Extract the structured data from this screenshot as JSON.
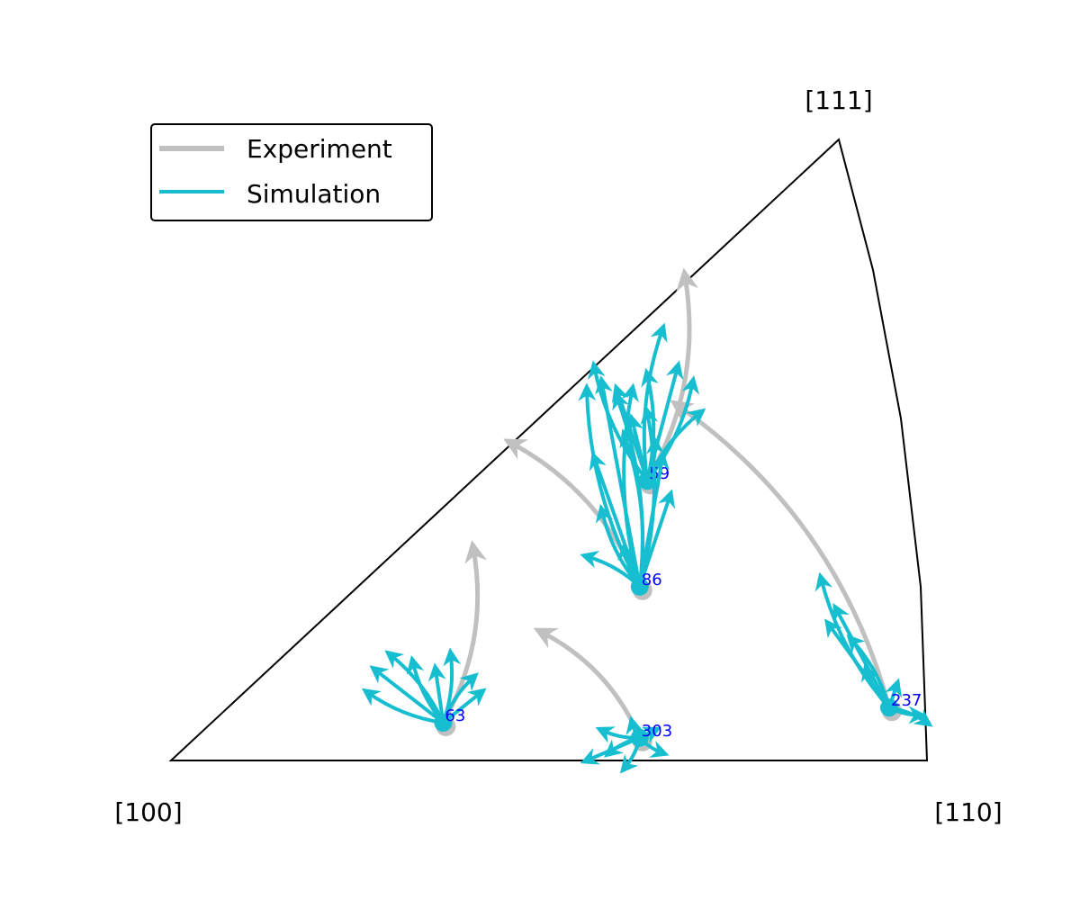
{
  "chart_data": {
    "type": "inverse-pole-figure",
    "title": "",
    "corners": [
      "[100]",
      "[110]",
      "[111]"
    ],
    "legend": {
      "placement": "top-left",
      "entries": [
        {
          "label": "Experiment",
          "color": "#c0c0c0"
        },
        {
          "label": "Simulation",
          "color": "#17becf"
        }
      ]
    },
    "label_color": "#0000ff",
    "grains": [
      {
        "id": "59",
        "start": [
          0.63,
          0.37
        ],
        "experiment_end": [
          0.68,
          0.64
        ],
        "simulation_ends": [
          [
            0.56,
            0.52
          ],
          [
            0.59,
            0.49
          ],
          [
            0.63,
            0.51
          ],
          [
            0.65,
            0.57
          ],
          [
            0.67,
            0.52
          ],
          [
            0.69,
            0.5
          ],
          [
            0.7,
            0.46
          ],
          [
            0.61,
            0.45
          ],
          [
            0.64,
            0.42
          ]
        ]
      },
      {
        "id": "86",
        "start": [
          0.62,
          0.23
        ],
        "experiment_end": [
          0.45,
          0.42
        ],
        "simulation_ends": [
          [
            0.55,
            0.49
          ],
          [
            0.57,
            0.5
          ],
          [
            0.59,
            0.48
          ],
          [
            0.61,
            0.49
          ],
          [
            0.56,
            0.4
          ],
          [
            0.6,
            0.43
          ],
          [
            0.57,
            0.33
          ],
          [
            0.65,
            0.4
          ],
          [
            0.55,
            0.27
          ],
          [
            0.6,
            0.28
          ],
          [
            0.66,
            0.35
          ],
          [
            0.63,
            0.46
          ]
        ]
      },
      {
        "id": "63",
        "start": [
          0.36,
          0.05
        ],
        "experiment_end": [
          0.4,
          0.28
        ],
        "simulation_ends": [
          [
            0.26,
            0.09
          ],
          [
            0.27,
            0.12
          ],
          [
            0.29,
            0.14
          ],
          [
            0.32,
            0.13
          ],
          [
            0.35,
            0.12
          ],
          [
            0.37,
            0.14
          ],
          [
            0.4,
            0.11
          ],
          [
            0.41,
            0.09
          ]
        ]
      },
      {
        "id": "303",
        "start": [
          0.62,
          0.03
        ],
        "experiment_end": [
          0.49,
          0.17
        ],
        "simulation_ends": [
          [
            0.57,
            0.04
          ],
          [
            0.55,
            0.0
          ],
          [
            0.58,
            0.01
          ],
          [
            0.61,
            0.05
          ],
          [
            0.64,
            0.04
          ],
          [
            0.65,
            0.01
          ],
          [
            0.6,
            -0.01
          ]
        ]
      },
      {
        "id": "237",
        "start": [
          0.95,
          0.07
        ],
        "experiment_end": [
          0.67,
          0.47
        ],
        "simulation_ends": [
          [
            0.86,
            0.24
          ],
          [
            0.88,
            0.2
          ],
          [
            0.9,
            0.16
          ],
          [
            0.92,
            0.12
          ],
          [
            0.96,
            0.1
          ],
          [
            0.99,
            0.06
          ],
          [
            1.0,
            0.05
          ],
          [
            0.87,
            0.18
          ]
        ]
      }
    ]
  }
}
